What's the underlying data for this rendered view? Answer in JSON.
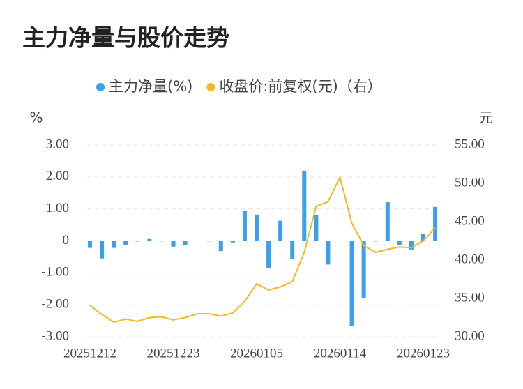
{
  "chart_data": {
    "type": "bar_line",
    "title": "主力净量与股价走势",
    "y_label": "%",
    "y2_label": "元",
    "categories": [
      "20251212",
      null,
      null,
      null,
      null,
      null,
      null,
      "20251223",
      null,
      null,
      null,
      null,
      null,
      null,
      "20260105",
      null,
      null,
      null,
      null,
      null,
      null,
      "20260114",
      null,
      null,
      null,
      null,
      null,
      null,
      "20260123",
      null
    ],
    "series": [
      {
        "name": "主力净量(%)",
        "type": "bar",
        "color": "#3a9ff0",
        "axis": "y",
        "values": [
          -0.22,
          -0.55,
          -0.22,
          -0.12,
          -0.02,
          0.06,
          -0.01,
          -0.18,
          -0.12,
          0.01,
          -0.01,
          -0.32,
          -0.05,
          0.93,
          0.82,
          -0.86,
          0.63,
          -0.57,
          2.19,
          0.8,
          -0.74,
          0.01,
          -2.65,
          -1.79,
          -0.02,
          1.21,
          -0.13,
          -0.27,
          0.21,
          1.06
        ]
      },
      {
        "name": "收盘价:前复权(元)（右）",
        "type": "line",
        "color": "#f5b820",
        "axis": "y2",
        "values": [
          34.1,
          32.9,
          31.9,
          32.3,
          32.0,
          32.5,
          32.6,
          32.2,
          32.5,
          33.0,
          33.0,
          32.7,
          33.1,
          34.6,
          36.9,
          36.1,
          36.5,
          37.2,
          41.0,
          47.0,
          47.6,
          50.8,
          44.8,
          41.9,
          41.0,
          41.4,
          41.7,
          41.6,
          42.5,
          44.2
        ]
      }
    ],
    "ylim": [
      -3,
      3
    ],
    "yticks": [
      {
        "value": 3,
        "label": "3.00"
      },
      {
        "value": 2,
        "label": "2.00"
      },
      {
        "value": 1,
        "label": "1.00"
      },
      0,
      {
        "value": -1,
        "label": "-1.00"
      },
      {
        "value": -2,
        "label": "-2.00"
      },
      {
        "value": -3,
        "label": "-3.00"
      }
    ],
    "y2lim": [
      30,
      55
    ],
    "y2ticks": [
      {
        "value": 55,
        "label": "55.00"
      },
      {
        "value": 50,
        "label": "50.00"
      },
      {
        "value": 45,
        "label": "45.00"
      },
      {
        "value": 40,
        "label": "40.00"
      },
      {
        "value": 35,
        "label": "35.00"
      },
      {
        "value": 30,
        "label": "30.00"
      }
    ],
    "grid": true
  }
}
